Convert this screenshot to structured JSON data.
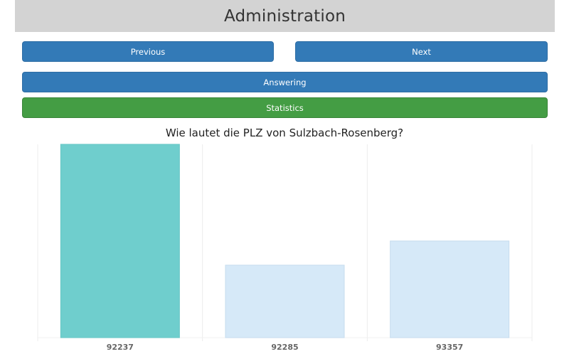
{
  "header": {
    "title": "Administration"
  },
  "nav": {
    "previous_label": "Previous",
    "next_label": "Next"
  },
  "modes": {
    "answering_label": "Answering",
    "statistics_label": "Statistics"
  },
  "colors": {
    "header_bg": "#d3d3d3",
    "button_blue": "#337ab7",
    "button_green": "#449d44",
    "bar_correct": "#6fcecd",
    "bar_other": "#d6e9f8"
  },
  "chart_data": {
    "type": "bar",
    "title": "Wie lautet die PLZ von Sulzbach-Rosenberg?",
    "categories": [
      "92237",
      "92285",
      "93357"
    ],
    "values": [
      100,
      37.5,
      50
    ],
    "correct_index": 0,
    "ylim": [
      0,
      100
    ],
    "grid": true
  }
}
